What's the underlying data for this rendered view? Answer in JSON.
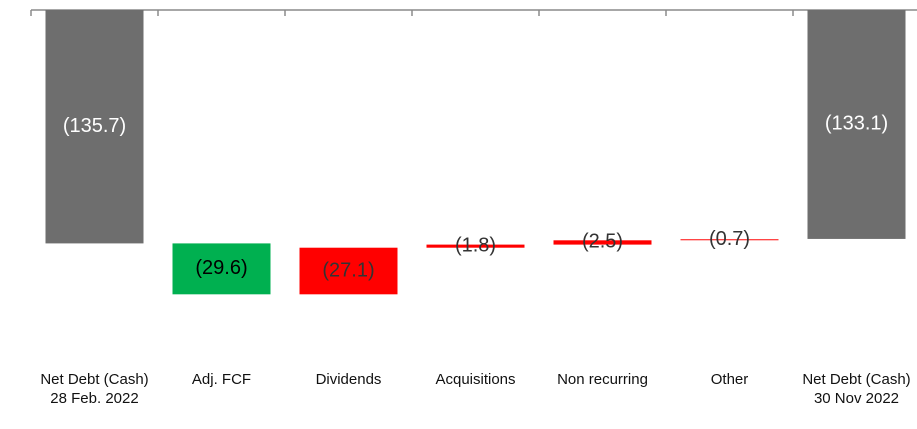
{
  "chart_data": {
    "type": "waterfall",
    "categories": [
      "Net Debt (Cash) 28 Feb. 2022",
      "Adj. FCF",
      "Dividends",
      "Acquisitions",
      "Non recurring",
      "Other",
      "Net Debt (Cash) 30 Nov 2022"
    ],
    "values": [
      -135.7,
      -29.6,
      27.1,
      1.8,
      2.5,
      0.7,
      -133.1
    ],
    "value_labels": [
      "(135.7)",
      "(29.6)",
      "(27.1)",
      "(1.8)",
      "(2.5)",
      "(0.7)",
      "(133.1)"
    ],
    "is_total": [
      true,
      false,
      false,
      false,
      false,
      false,
      true
    ],
    "colors": [
      "#6e6e6e",
      "#00b050",
      "#ff0000",
      "#ff0000",
      "#ff0000",
      "#ff3030",
      "#6e6e6e"
    ],
    "label_colors": [
      "#ffffff",
      "#000000",
      "#333333",
      "#333333",
      "#333333",
      "#333333",
      "#ffffff"
    ],
    "ylim": [
      -200,
      0
    ]
  }
}
